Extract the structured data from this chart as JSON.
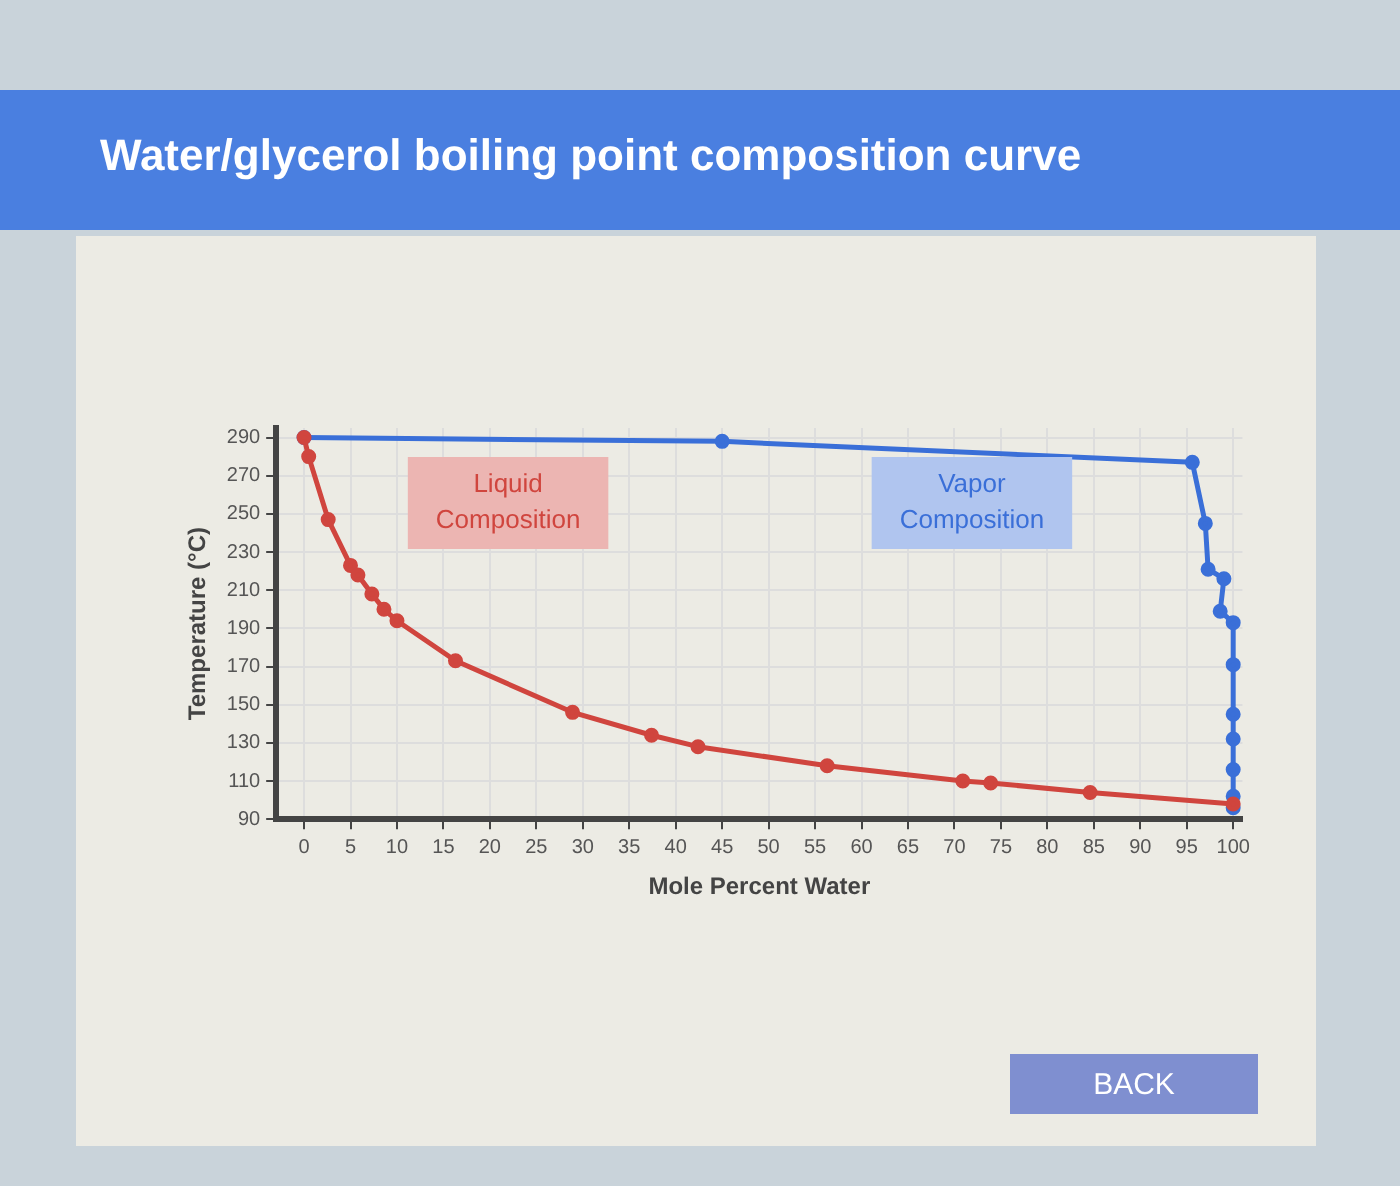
{
  "chart_data": {
    "type": "line",
    "title": "Water/glycerol boiling point composition curve",
    "xlabel": "Mole Percent Water",
    "ylabel": "Temperature (°C)",
    "xlim": [
      -3,
      101
    ],
    "xticks": [
      0,
      5,
      10,
      15,
      20,
      25,
      30,
      35,
      40,
      45,
      50,
      55,
      60,
      65,
      70,
      75,
      80,
      85,
      90,
      95,
      100
    ],
    "ylim": [
      90,
      295
    ],
    "yticks": [
      90,
      110,
      130,
      150,
      170,
      190,
      210,
      230,
      250,
      270,
      290
    ],
    "grid": true,
    "legend": false,
    "marker": "circle",
    "series": [
      {
        "name": "Liquid Composition",
        "color": "#d0453e",
        "x": [
          0,
          0.5,
          2.6,
          5,
          5.8,
          7.3,
          8.6,
          10,
          16.3,
          28.9,
          37.4,
          42.4,
          56.3,
          70.9,
          73.9,
          84.6,
          100
        ],
        "values": [
          290,
          280,
          247,
          223,
          218,
          208,
          200,
          194,
          173,
          146,
          134,
          128,
          118,
          110,
          109,
          104,
          98
        ]
      },
      {
        "name": "Vapor Composition",
        "color": "#3a6fd8",
        "x": [
          0,
          45,
          95.6,
          97,
          97.3,
          99,
          98.6,
          100,
          100,
          100,
          100,
          100,
          100,
          100
        ],
        "values": [
          290,
          288,
          277,
          245,
          221,
          216,
          199,
          193,
          171,
          145,
          132,
          116,
          102,
          96
        ]
      }
    ],
    "annotations": [
      "BACK"
    ]
  }
}
